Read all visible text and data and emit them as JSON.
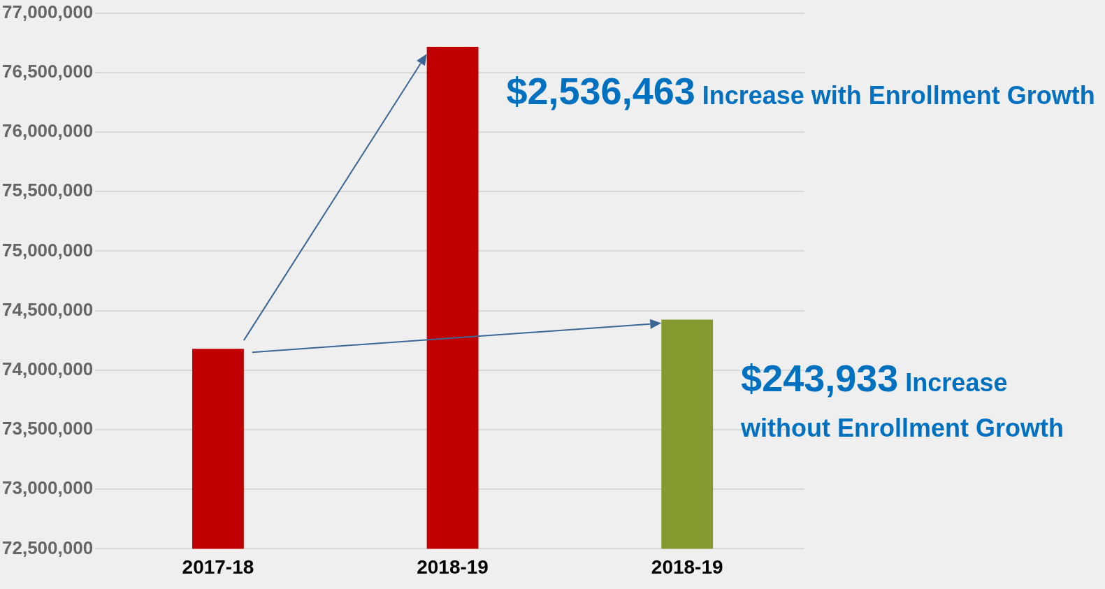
{
  "chart_data": {
    "type": "bar",
    "categories": [
      "2017-18",
      "2018-19",
      "2018-19"
    ],
    "values": [
      74180000,
      76716000,
      74424000
    ],
    "colors": [
      "#c00000",
      "#c00000",
      "#84992e"
    ],
    "ylim": [
      72500000,
      77000000
    ],
    "yticks": [
      {
        "value": 72500000,
        "label": "72,500,000"
      },
      {
        "value": 73000000,
        "label": "73,000,000"
      },
      {
        "value": 73500000,
        "label": "73,500,000"
      },
      {
        "value": 74000000,
        "label": "74,000,000"
      },
      {
        "value": 74500000,
        "label": "74,500,000"
      },
      {
        "value": 75000000,
        "label": "75,000,000"
      },
      {
        "value": 75500000,
        "label": "75,500,000"
      },
      {
        "value": 76000000,
        "label": "76,000,000"
      },
      {
        "value": 76500000,
        "label": "76,500,000"
      },
      {
        "value": 77000000,
        "label": "77,000,000"
      }
    ],
    "grid": "y",
    "legend": false,
    "annotations": [
      "$2,536,463 Increase with Enrollment Growth",
      "$243,933 Increase without Enrollment Growth"
    ]
  }
}
